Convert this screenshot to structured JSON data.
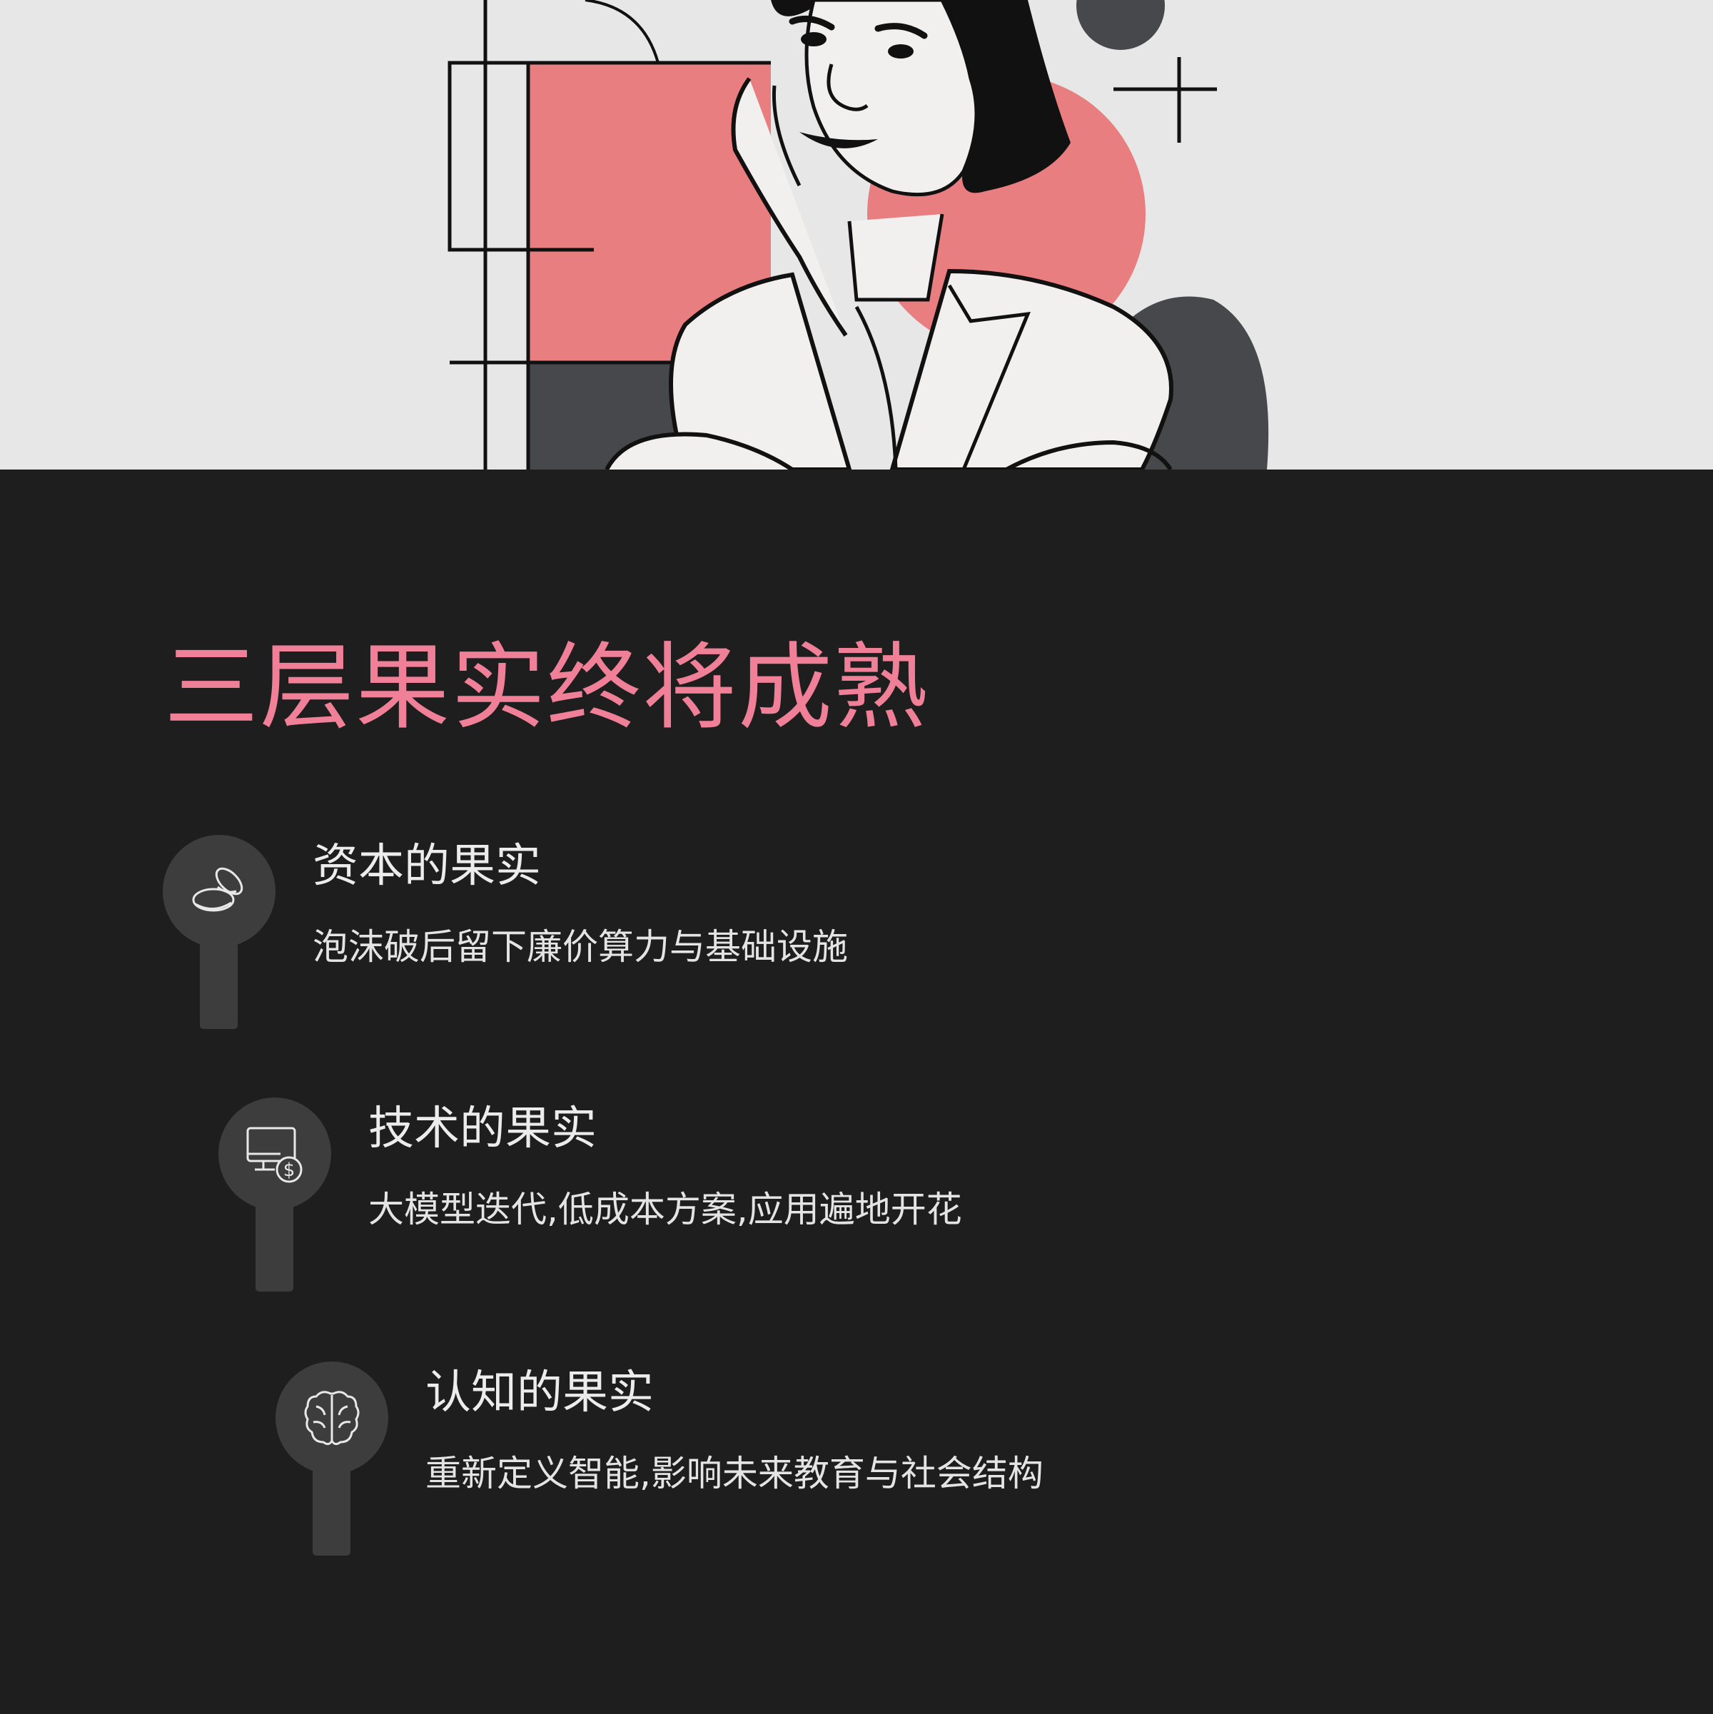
{
  "page": {
    "title": "三层果实终将成熟"
  },
  "items": [
    {
      "title": "资本的果实",
      "desc": "泡沫破后留下廉价算力与基础设施",
      "icon": "coins-icon"
    },
    {
      "title": "技术的果实",
      "desc": "大模型迭代,低成本方案,应用遍地开花",
      "icon": "monitor-dollar-icon"
    },
    {
      "title": "认知的果实",
      "desc": "重新定义智能,影响未来教育与社会结构",
      "icon": "brain-icon"
    }
  ],
  "colors": {
    "background": "#1e1e1f",
    "title_accent": "#f07f98",
    "hero_background": "#e8e7e7",
    "hero_coral": "#e97e80",
    "hero_dark": "#47484b",
    "pin": "#3d3d3e"
  }
}
